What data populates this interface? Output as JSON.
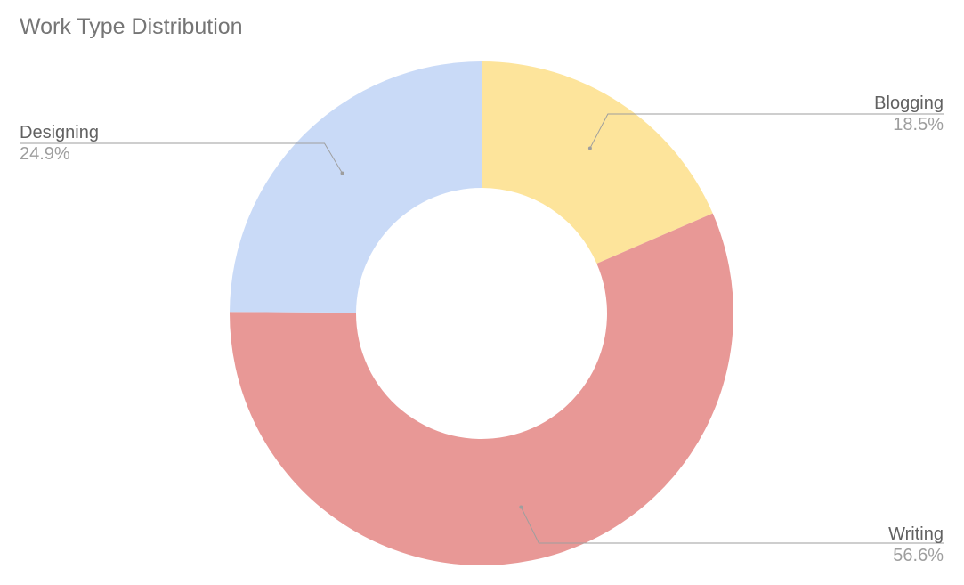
{
  "chart_data": {
    "type": "pie",
    "title": "Work Type Distribution",
    "donut": true,
    "categories": [
      "Blogging",
      "Writing",
      "Designing"
    ],
    "values": [
      18.5,
      56.6,
      24.9
    ],
    "value_labels": [
      "18.5%",
      "56.6%",
      "24.9%"
    ],
    "colors": [
      "#fde49b",
      "#e89896",
      "#c9daf7"
    ],
    "legend": "none"
  }
}
